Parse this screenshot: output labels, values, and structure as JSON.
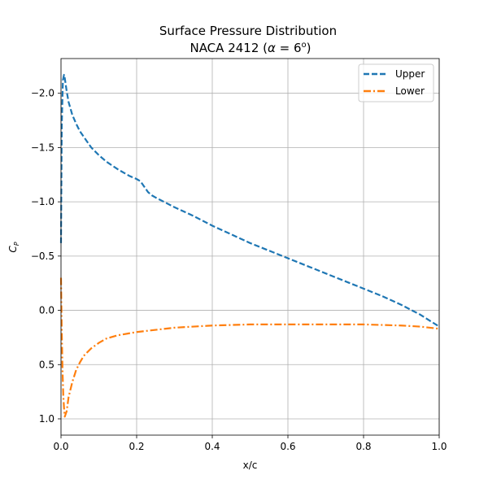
{
  "chart_data": {
    "type": "line",
    "title": "Surface Pressure Distribution",
    "subtitle_prefix": "NACA 2412 (",
    "subtitle_alpha": "α",
    "subtitle_eq": " = 6",
    "subtitle_sup": "o",
    "subtitle_suffix": ")",
    "xlabel": "x/c",
    "ylabel_main": "C",
    "ylabel_sub": "P",
    "xlim": [
      0.0,
      1.0
    ],
    "ylim": [
      1.15,
      -2.32
    ],
    "y_inverted": true,
    "grid": true,
    "legend_position": "upper right",
    "xticks": [
      0.0,
      0.2,
      0.4,
      0.6,
      0.8,
      1.0
    ],
    "xtick_labels": [
      "0.0",
      "0.2",
      "0.4",
      "0.6",
      "0.8",
      "1.0"
    ],
    "yticks": [
      -2.0,
      -1.5,
      -1.0,
      -0.5,
      0.0,
      0.5,
      1.0
    ],
    "ytick_labels": [
      "−2.0",
      "−1.5",
      "−1.0",
      "−0.5",
      "0.0",
      "0.5",
      "1.0"
    ],
    "series": [
      {
        "name": "Upper",
        "color": "#1f77b4",
        "linestyle": "dashed",
        "x": [
          0.0,
          0.002,
          0.005,
          0.008,
          0.01,
          0.015,
          0.02,
          0.03,
          0.04,
          0.05,
          0.06,
          0.08,
          0.1,
          0.12,
          0.15,
          0.18,
          0.2,
          0.21,
          0.22,
          0.23,
          0.24,
          0.25,
          0.3,
          0.35,
          0.4,
          0.45,
          0.5,
          0.55,
          0.6,
          0.65,
          0.7,
          0.75,
          0.8,
          0.85,
          0.9,
          0.95,
          1.0
        ],
        "values": [
          -0.62,
          -1.7,
          -2.12,
          -2.17,
          -2.14,
          -2.02,
          -1.92,
          -1.8,
          -1.72,
          -1.65,
          -1.6,
          -1.5,
          -1.43,
          -1.37,
          -1.3,
          -1.24,
          -1.21,
          -1.19,
          -1.14,
          -1.09,
          -1.06,
          -1.04,
          -0.95,
          -0.87,
          -0.78,
          -0.7,
          -0.62,
          -0.55,
          -0.48,
          -0.41,
          -0.34,
          -0.27,
          -0.2,
          -0.13,
          -0.05,
          0.04,
          0.15
        ]
      },
      {
        "name": "Lower",
        "color": "#ff7f0e",
        "linestyle": "dashdot",
        "x": [
          0.0,
          0.002,
          0.004,
          0.006,
          0.008,
          0.01,
          0.015,
          0.02,
          0.03,
          0.04,
          0.05,
          0.06,
          0.08,
          0.1,
          0.12,
          0.15,
          0.2,
          0.25,
          0.3,
          0.4,
          0.5,
          0.6,
          0.7,
          0.8,
          0.9,
          0.95,
          1.0
        ],
        "values": [
          -0.3,
          0.2,
          0.55,
          0.78,
          0.9,
          0.98,
          0.93,
          0.8,
          0.66,
          0.55,
          0.48,
          0.42,
          0.35,
          0.3,
          0.26,
          0.23,
          0.2,
          0.18,
          0.16,
          0.14,
          0.13,
          0.13,
          0.13,
          0.13,
          0.14,
          0.15,
          0.17
        ]
      }
    ]
  }
}
